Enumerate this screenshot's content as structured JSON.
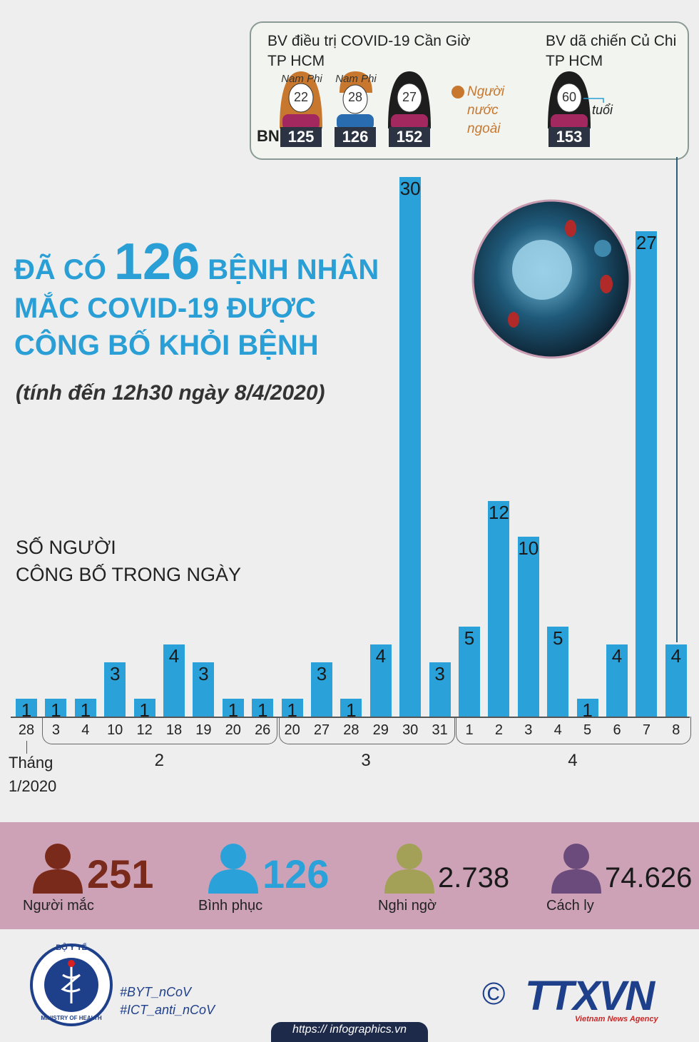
{
  "chart_data": {
    "type": "bar",
    "axis_label_lines": [
      "SỐ NGƯỜI",
      "CÔNG BỐ TRONG NGÀY"
    ],
    "color": "#2aa2d9",
    "ylim": [
      0,
      30
    ],
    "groups": [
      {
        "label": "Tháng 1/2020",
        "categories": [
          "28"
        ],
        "values": [
          1
        ]
      },
      {
        "label": "2",
        "categories": [
          "3",
          "4",
          "10",
          "12",
          "18",
          "19",
          "20",
          "26"
        ],
        "values": [
          1,
          1,
          3,
          1,
          4,
          3,
          1,
          1
        ]
      },
      {
        "label": "3",
        "categories": [
          "20",
          "27",
          "28",
          "29",
          "30",
          "31"
        ],
        "values": [
          1,
          3,
          1,
          4,
          30,
          3
        ]
      },
      {
        "label": "4",
        "categories": [
          "1",
          "2",
          "3",
          "4",
          "5",
          "6",
          "7",
          "8"
        ],
        "values": [
          5,
          12,
          10,
          5,
          1,
          4,
          27,
          4
        ]
      }
    ]
  },
  "headline": {
    "line1_before": "ĐÃ CÓ",
    "highlight": "126",
    "line1_after": "BỆNH NHÂN",
    "line2": "MẮC COVID-19 ĐƯỢC",
    "line3": "CÔNG BỐ KHỎI BỆNH",
    "subtitle": "(tính đến 12h30 ngày 8/4/2020)"
  },
  "patients_box": {
    "hospitals": [
      {
        "name_lines": [
          "BV điều trị COVID-19 Cần Giờ",
          "TP HCM"
        ]
      },
      {
        "name_lines": [
          "BV dã chiến Củ Chi",
          "TP HCM"
        ]
      }
    ],
    "bn_label": "BN",
    "patients": [
      {
        "origin": "Nam Phi",
        "age": "22",
        "id": "125"
      },
      {
        "origin": "Nam Phi",
        "age": "28",
        "id": "126"
      },
      {
        "age": "27",
        "id": "152"
      },
      {
        "age": "60",
        "id": "153"
      }
    ],
    "foreigner_legend": "Người nước ngoài",
    "age_unit": "tuổi"
  },
  "stats": [
    {
      "value": "251",
      "label": "Người mắc"
    },
    {
      "value": "126",
      "label": "Bình phục"
    },
    {
      "value": "2.738",
      "label": "Nghi ngờ"
    },
    {
      "value": "74.626",
      "label": "Cách ly"
    }
  ],
  "footer": {
    "ministry_top": "BỘ Y TẾ",
    "ministry_bottom": "MINISTRY OF HEALTH",
    "hashtags": [
      "#BYT_nCoV",
      "#ICT_anti_nCoV"
    ],
    "copyright": "©",
    "agency": "TTXVN",
    "agency_sub": "Vietnam News Agency",
    "url": "https:// infographics.vn"
  }
}
